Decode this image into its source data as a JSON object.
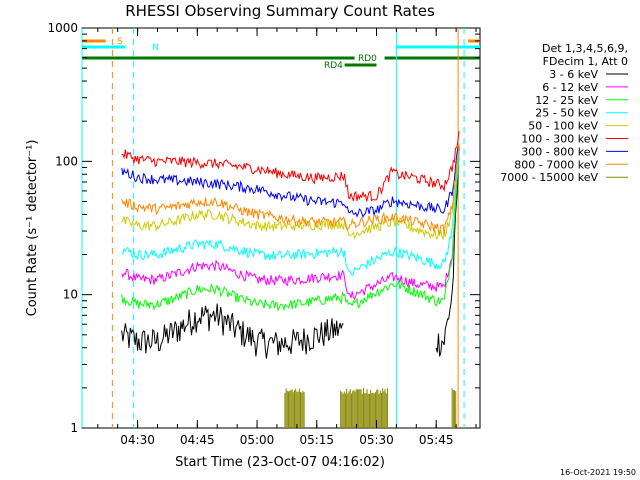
{
  "chart_data": {
    "type": "line",
    "title": "RHESSI Observing Summary Count Rates",
    "xlabel": "Start Time (23-Oct-07 04:16:02)",
    "ylabel": "Count Rate (s⁻¹ detector⁻¹)",
    "y_scale": "log",
    "ylim": [
      1,
      1000
    ],
    "xlim": [
      "04:16:02",
      "05:56:00"
    ],
    "x_ticks": [
      "04:30",
      "04:45",
      "05:00",
      "05:15",
      "05:30",
      "05:45"
    ],
    "y_ticks": [
      "1",
      "10",
      "100",
      "1000"
    ],
    "legend_header": [
      "Det 1,3,4,5,6,9,",
      "FDecim 1, Att 0"
    ],
    "legend_position": "right",
    "timestamp": "16-Oct-2021 19:50",
    "series": [
      {
        "name": "3 - 6 keV",
        "color": "#000000",
        "x": [
          "04:26",
          "04:30",
          "04:35",
          "04:40",
          "04:45",
          "04:50",
          "04:55",
          "05:00",
          "05:05",
          "05:10",
          "05:15",
          "05:20",
          "05:22",
          "05:23",
          "05:26",
          "05:30",
          "05:34",
          "05:35",
          "05:40",
          "05:45",
          "05:47",
          "05:49",
          "05:51"
        ],
        "y": [
          5,
          4.5,
          4.5,
          5.5,
          7,
          7,
          5.5,
          4.5,
          4.3,
          4.5,
          5,
          5.5,
          5.5,
          null,
          null,
          null,
          null,
          null,
          null,
          4.5,
          4.5,
          10,
          160
        ]
      },
      {
        "name": "6 - 12 keV",
        "color": "#ff00ff",
        "x": [
          "04:26",
          "04:30",
          "04:35",
          "04:40",
          "04:45",
          "04:50",
          "04:55",
          "05:00",
          "05:05",
          "05:10",
          "05:15",
          "05:20",
          "05:22",
          "05:23",
          "05:26",
          "05:30",
          "05:34",
          "05:35",
          "05:40",
          "05:45",
          "05:47",
          "05:49",
          "05:51"
        ],
        "y": [
          15,
          13,
          13,
          14.5,
          16.5,
          16.5,
          14.5,
          13,
          12.8,
          13,
          13.5,
          14,
          14,
          9.5,
          10.5,
          12,
          13.5,
          13.5,
          12,
          11.5,
          11.5,
          20,
          160
        ]
      },
      {
        "name": "12 - 25 keV",
        "color": "#00ff00",
        "x": [
          "04:26",
          "04:30",
          "04:35",
          "04:40",
          "04:45",
          "04:50",
          "04:55",
          "05:00",
          "05:05",
          "05:10",
          "05:15",
          "05:20",
          "05:22",
          "05:23",
          "05:26",
          "05:30",
          "05:34",
          "05:35",
          "05:40",
          "05:45",
          "05:47",
          "05:49",
          "05:51"
        ],
        "y": [
          9.5,
          8.5,
          8.5,
          9.5,
          11,
          11,
          9.5,
          8.5,
          8.3,
          8.5,
          9,
          9.5,
          9.5,
          8,
          9,
          10.5,
          12,
          12,
          10.5,
          9,
          9,
          20,
          160
        ]
      },
      {
        "name": "25 - 50 keV",
        "color": "#00ffff",
        "x": [
          "04:26",
          "04:30",
          "04:35",
          "04:40",
          "04:45",
          "04:50",
          "04:55",
          "05:00",
          "05:05",
          "05:10",
          "05:15",
          "05:20",
          "05:22",
          "05:23",
          "05:26",
          "05:30",
          "05:34",
          "05:35",
          "05:40",
          "05:45",
          "05:47",
          "05:49",
          "05:51"
        ],
        "y": [
          22,
          20,
          20,
          22,
          24,
          24,
          22,
          20,
          19.5,
          20,
          20.5,
          21,
          21,
          14,
          16,
          18.5,
          21,
          21,
          19,
          17,
          17,
          30,
          160
        ]
      },
      {
        "name": "50 - 100 keV",
        "color": "#cccc00",
        "x": [
          "04:26",
          "04:30",
          "04:35",
          "04:40",
          "04:45",
          "04:50",
          "04:55",
          "05:00",
          "05:05",
          "05:10",
          "05:15",
          "05:20",
          "05:22",
          "05:23",
          "05:26",
          "05:30",
          "05:34",
          "05:35",
          "05:40",
          "05:45",
          "05:47",
          "05:49",
          "05:51"
        ],
        "y": [
          36,
          33,
          33,
          36,
          40,
          40,
          36,
          33,
          32.5,
          33,
          33.5,
          34,
          34,
          28,
          30,
          32.5,
          35,
          35,
          31,
          28,
          28,
          40,
          160
        ]
      },
      {
        "name": "100 - 300 keV",
        "color": "#ff0000",
        "x": [
          "04:26",
          "04:30",
          "04:35",
          "04:40",
          "04:45",
          "04:50",
          "04:55",
          "05:00",
          "05:05",
          "05:10",
          "05:15",
          "05:20",
          "05:22",
          "05:23",
          "05:26",
          "05:30",
          "05:34",
          "05:35",
          "05:40",
          "05:45",
          "05:47",
          "05:49",
          "05:51"
        ],
        "y": [
          115,
          104,
          100,
          100,
          98,
          96,
          92,
          88,
          82,
          78,
          75,
          77,
          78,
          55,
          55,
          55,
          85,
          80,
          75,
          68,
          66,
          90,
          170
        ]
      },
      {
        "name": "300 - 800 keV",
        "color": "#0000ff",
        "x": [
          "04:26",
          "04:30",
          "04:35",
          "04:40",
          "04:45",
          "04:50",
          "04:55",
          "05:00",
          "05:05",
          "05:10",
          "05:15",
          "05:20",
          "05:22",
          "05:23",
          "05:26",
          "05:30",
          "05:34",
          "05:35",
          "05:40",
          "05:45",
          "05:47",
          "05:49",
          "05:51"
        ],
        "y": [
          85,
          76,
          73,
          72,
          70,
          68,
          65,
          62,
          57,
          53,
          50,
          49,
          50,
          40,
          41,
          43,
          51,
          50,
          47,
          44,
          43,
          60,
          160
        ]
      },
      {
        "name": "800 - 7000 keV",
        "color": "#ff8800",
        "x": [
          "04:26",
          "04:30",
          "04:35",
          "04:40",
          "04:45",
          "04:50",
          "04:55",
          "05:00",
          "05:05",
          "05:10",
          "05:15",
          "05:20",
          "05:22",
          "05:23",
          "05:26",
          "05:30",
          "05:34",
          "05:35",
          "05:40",
          "05:45",
          "05:47",
          "05:49",
          "05:51"
        ],
        "y": [
          50,
          46,
          44,
          46,
          50,
          50,
          44,
          40,
          38,
          36,
          35,
          35,
          35,
          33,
          35,
          37,
          38,
          38,
          35,
          32,
          31,
          45,
          160
        ]
      },
      {
        "name": "7000 - 15000 keV",
        "color": "#888800",
        "x": [
          "05:07",
          "05:12",
          "05:21",
          "05:33",
          "05:49",
          "05:50"
        ],
        "y": [
          1.8,
          1.8,
          1.8,
          1.8,
          1.8,
          1.8
        ]
      }
    ],
    "flags": [
      {
        "label": "S",
        "color": "#ff8800"
      },
      {
        "label": "N",
        "color": "#00ffff"
      },
      {
        "label": "RD0",
        "color": "#007700"
      },
      {
        "label": "RD4",
        "color": "#007700"
      }
    ]
  }
}
